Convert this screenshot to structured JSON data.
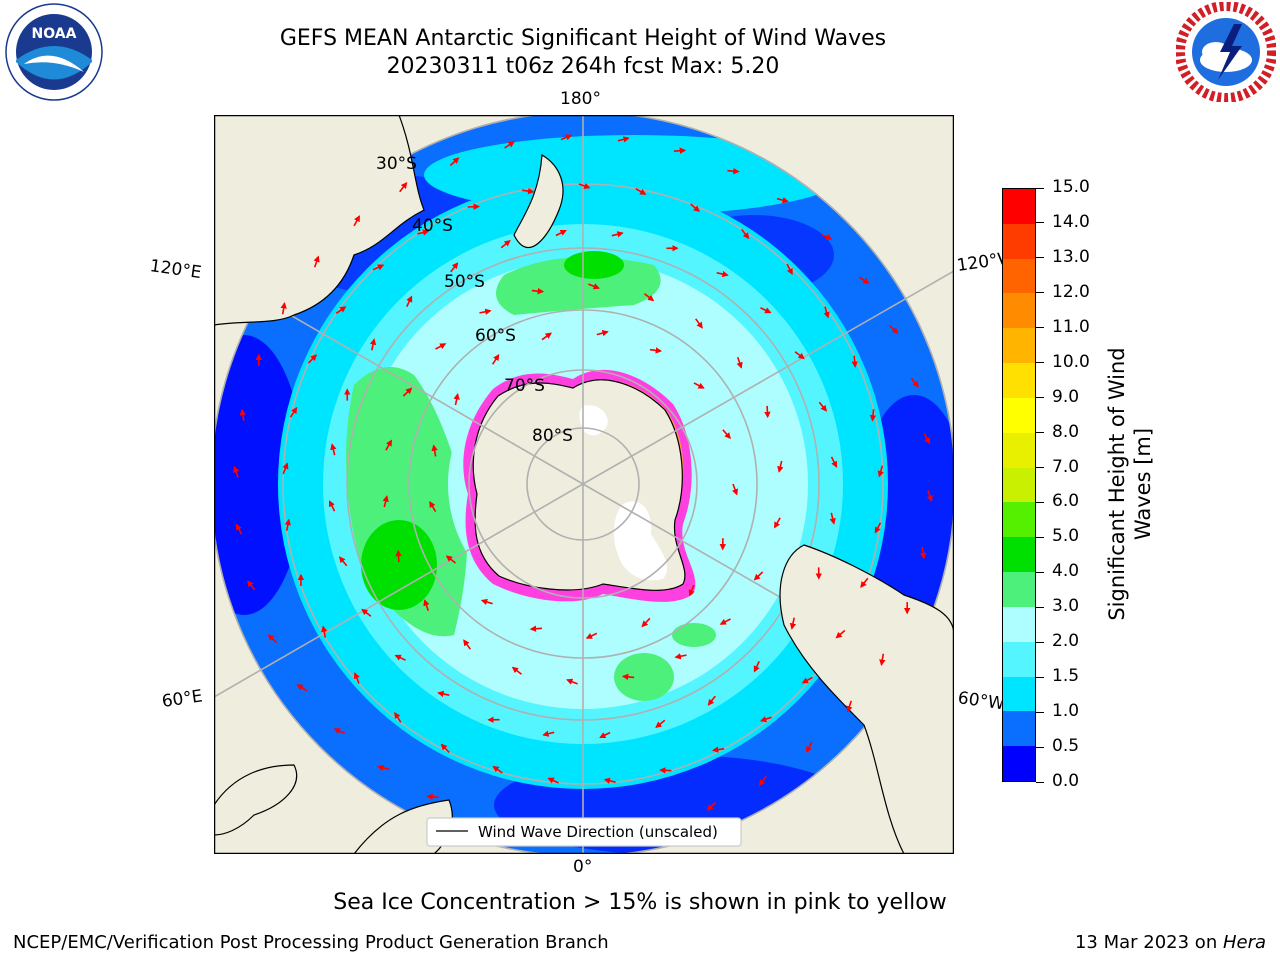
{
  "header": {
    "title_line1": "GEFS MEAN Antarctic Significant Height of Wind Waves",
    "title_line2": "20230311 t06z 264h fcst   Max: 5.20"
  },
  "logos": {
    "left": "NOAA",
    "left_ring_text": "NATIONAL OCEANIC AND ATMOSPHERIC ADMINISTRATION · U.S. DEPARTMENT OF COMMERCE",
    "right_ring_text": "NATIONAL WEATHER SERVICE"
  },
  "map": {
    "projection": "south-polar-stereographic",
    "lon_labels": {
      "top": "180°",
      "bottom": "0°",
      "upper_left": "120°E",
      "upper_right": "120°W",
      "lower_left": "60°E",
      "lower_right": "60°W"
    },
    "lat_labels": [
      "30°S",
      "40°S",
      "50°S",
      "60°S",
      "70°S",
      "80°S"
    ],
    "legend_label": "Wind Wave Direction (unscaled)",
    "max_value": 5.2
  },
  "colorbar": {
    "label": "Significant Height of Wind Waves [m]",
    "ticks": [
      "0.0",
      "0.5",
      "1.0",
      "1.5",
      "2.0",
      "3.0",
      "4.0",
      "5.0",
      "6.0",
      "7.0",
      "8.0",
      "9.0",
      "10.0",
      "11.0",
      "12.0",
      "13.0",
      "14.0",
      "15.0"
    ],
    "colors": [
      "#0000ff",
      "#0a6eff",
      "#00e5ff",
      "#55f5ff",
      "#aefeff",
      "#4cf07a",
      "#00e000",
      "#54f000",
      "#c8f000",
      "#e8f000",
      "#ffff00",
      "#ffe000",
      "#ffb400",
      "#ff8c00",
      "#ff6400",
      "#ff3c00",
      "#ff0000"
    ]
  },
  "notes": {
    "sea_ice": "Sea Ice Concentration > 15% is shown in pink to yellow"
  },
  "footer": {
    "left": "NCEP/EMC/Verification Post Processing Product Generation Branch",
    "right_date": "13 Mar 2023 on ",
    "right_host": "Hera"
  }
}
